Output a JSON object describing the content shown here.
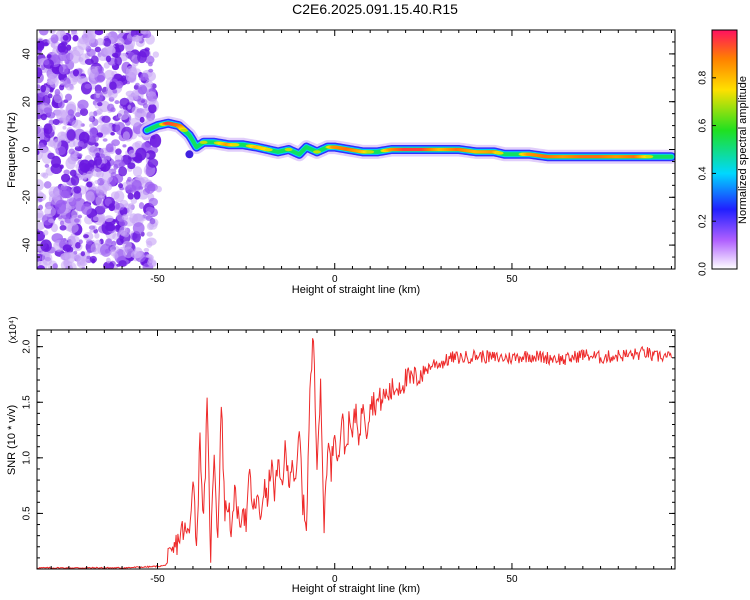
{
  "title": "C2E6.2025.091.15.40.R15",
  "colors": {
    "snr_line": "#ee2a2a",
    "ridge_palette": [
      "#7b00e0",
      "#2020ff",
      "#00c8ff",
      "#00e070",
      "#ffe000",
      "#ff2020"
    ]
  },
  "chart_data": [
    {
      "type": "heatmap",
      "xlabel": "Height of straight line (km)",
      "ylabel": "Frequency (Hz)",
      "xlim": [
        -84,
        96
      ],
      "ylim": [
        -50,
        50
      ],
      "x_ticks": [
        -50,
        0,
        50
      ],
      "x_tick_labels": [
        "-50",
        "0",
        "50"
      ],
      "y_ticks": [
        -40,
        -20,
        0,
        20,
        40
      ],
      "y_tick_labels": [
        "-40",
        "-20",
        "0",
        "20",
        "40"
      ],
      "noise_region_x": [
        -84,
        -51
      ],
      "ridge": {
        "x": [
          -53,
          -50,
          -47,
          -44,
          -41,
          -39,
          -37,
          -34,
          -30,
          -26,
          -22,
          -19,
          -16,
          -13,
          -10,
          -8,
          -5,
          -2,
          0,
          4,
          8,
          12,
          16,
          20,
          25,
          30,
          35,
          40,
          45,
          48,
          51,
          55,
          60,
          65,
          70,
          75,
          80,
          85,
          90,
          95
        ],
        "frequency": [
          8,
          10,
          11,
          10,
          6,
          1,
          3,
          3,
          2,
          2,
          1,
          0,
          -1,
          0,
          -2,
          1,
          -1,
          1,
          1,
          0,
          -1,
          -1,
          0,
          0,
          0,
          0,
          0,
          -1,
          -1,
          -2,
          -2,
          -2,
          -3,
          -3,
          -3,
          -3,
          -3,
          -3,
          -3,
          -3
        ],
        "amplitude": [
          0.4,
          0.45,
          0.95,
          0.9,
          0.5,
          0.55,
          0.7,
          0.65,
          0.85,
          0.6,
          0.8,
          0.75,
          0.5,
          0.7,
          0.45,
          0.6,
          0.7,
          0.65,
          0.85,
          0.9,
          0.8,
          0.6,
          0.85,
          0.95,
          0.95,
          0.8,
          0.9,
          0.8,
          0.85,
          0.6,
          0.6,
          0.85,
          0.9,
          0.85,
          0.9,
          0.9,
          0.85,
          0.9,
          0.65,
          0.6
        ]
      },
      "colorbar": {
        "label": "Normalized spectral amplitude",
        "range": [
          0,
          1
        ],
        "ticks": [
          0.0,
          0.2,
          0.4,
          0.6,
          0.8
        ],
        "tick_labels": [
          "0.0",
          "0.2",
          "0.4",
          "0.6",
          "0.8"
        ]
      }
    },
    {
      "type": "line",
      "xlabel": "Height of straight line (km)",
      "ylabel": "SNR (10 * v/v)",
      "scale_label": "(x10⁴)",
      "xlim": [
        -84,
        96
      ],
      "ylim": [
        0,
        2.15
      ],
      "x_ticks": [
        -50,
        0,
        50
      ],
      "x_tick_labels": [
        "-50",
        "0",
        "50"
      ],
      "y_ticks": [
        0.5,
        1.0,
        1.5,
        2.0
      ],
      "y_tick_labels": [
        "0.5",
        "1.0",
        "1.5",
        "2.0"
      ],
      "series": [
        {
          "x": [
            -84,
            -70,
            -60,
            -52,
            -48,
            -46,
            -45,
            -43,
            -41,
            -40,
            -39,
            -38,
            -37,
            -36,
            -35,
            -34,
            -33,
            -32,
            -31,
            -30,
            -29,
            -28,
            -27,
            -26,
            -25,
            -24,
            -23,
            -22,
            -21,
            -20,
            -19,
            -18,
            -17,
            -16,
            -15,
            -14,
            -13,
            -12,
            -11,
            -10,
            -9,
            -8,
            -7,
            -6,
            -5,
            -4,
            -3,
            -2,
            -1,
            0,
            1,
            2,
            3,
            4,
            5,
            6,
            7,
            8,
            9,
            10,
            12,
            14,
            16,
            18,
            20,
            22,
            24,
            26,
            28,
            30,
            33,
            36,
            40,
            45,
            50,
            55,
            60,
            62,
            65,
            70,
            75,
            80,
            85,
            88,
            90,
            92,
            95
          ],
          "y": [
            0.01,
            0.01,
            0.01,
            0.02,
            0.03,
            0.1,
            0.2,
            0.35,
            0.3,
            0.9,
            0.2,
            1.2,
            0.4,
            1.45,
            0.15,
            1.1,
            0.25,
            1.5,
            0.5,
            0.6,
            0.3,
            0.75,
            0.35,
            0.6,
            0.4,
            0.85,
            0.5,
            0.65,
            0.45,
            0.75,
            0.6,
            0.95,
            0.7,
            0.9,
            0.75,
            1.05,
            0.8,
            1.0,
            0.7,
            1.25,
            0.6,
            0.4,
            1.55,
            2.12,
            1.0,
            1.6,
            0.4,
            1.15,
            0.9,
            1.3,
            0.95,
            1.4,
            1.05,
            1.3,
            1.2,
            1.45,
            1.15,
            1.55,
            1.25,
            1.5,
            1.5,
            1.55,
            1.6,
            1.65,
            1.7,
            1.7,
            1.75,
            1.8,
            1.85,
            1.85,
            1.9,
            1.9,
            1.92,
            1.9,
            1.9,
            1.92,
            1.9,
            1.9,
            1.88,
            1.93,
            1.9,
            1.92,
            1.93,
            1.95,
            1.9,
            1.92,
            1.9
          ]
        }
      ]
    }
  ]
}
